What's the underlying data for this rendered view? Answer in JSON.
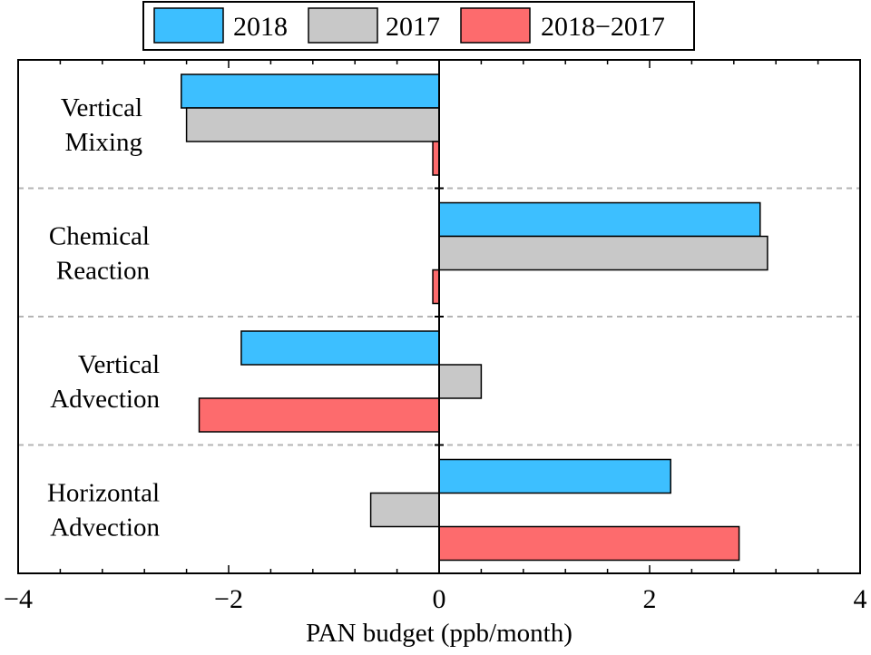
{
  "chart_data": {
    "type": "bar",
    "orientation": "horizontal",
    "xlabel": "PAN budget (ppb/month)",
    "xlim": [
      -4,
      4
    ],
    "xticks": [
      -4,
      -2,
      0,
      2,
      4
    ],
    "xtick_labels": [
      "−4",
      "−2",
      "0",
      "2",
      "4"
    ],
    "categories": [
      [
        "Vertical",
        "Mixing"
      ],
      [
        "Chemical",
        "Reaction"
      ],
      [
        "Vertical",
        "Advection"
      ],
      [
        "Horizontal",
        "Advection"
      ]
    ],
    "series": [
      {
        "name": "2018",
        "color": "#3dbfff",
        "values": [
          -2.45,
          3.05,
          -1.88,
          2.2
        ]
      },
      {
        "name": "2017",
        "color": "#c8c8c8",
        "values": [
          -2.4,
          3.12,
          0.4,
          -0.65
        ]
      },
      {
        "name": "2018−2017",
        "color": "#fd6b6d",
        "values": [
          -0.06,
          -0.06,
          -2.28,
          2.85
        ]
      }
    ],
    "legend_position": "top",
    "grid": false,
    "category_separators": "dashed"
  }
}
